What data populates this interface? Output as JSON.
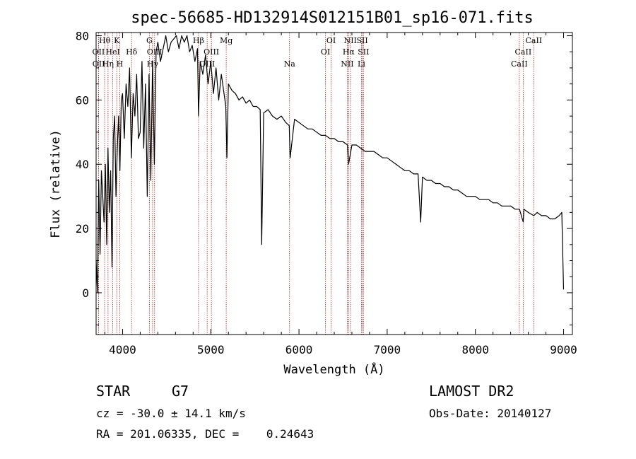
{
  "chart_data": {
    "type": "line",
    "title": "spec-56685-HD132914S012151B01_sp16-071.fits",
    "xlabel": "Wavelength (Å)",
    "ylabel": "Flux (relative)",
    "xlim": [
      3700,
      9100
    ],
    "ylim": [
      -13,
      81
    ],
    "xticks": [
      4000,
      5000,
      6000,
      7000,
      8000,
      9000
    ],
    "yticks": [
      0,
      20,
      40,
      60,
      80
    ],
    "series": [
      {
        "name": "spectrum",
        "x": [
          3700,
          3715,
          3730,
          3745,
          3760,
          3775,
          3790,
          3805,
          3820,
          3835,
          3850,
          3865,
          3880,
          3895,
          3910,
          3925,
          3940,
          3955,
          3970,
          3985,
          4000,
          4020,
          4040,
          4060,
          4080,
          4100,
          4120,
          4140,
          4160,
          4180,
          4200,
          4220,
          4240,
          4260,
          4280,
          4300,
          4320,
          4340,
          4360,
          4380,
          4400,
          4430,
          4460,
          4490,
          4520,
          4550,
          4580,
          4610,
          4640,
          4670,
          4700,
          4730,
          4760,
          4790,
          4820,
          4850,
          4861,
          4880,
          4910,
          4940,
          4970,
          5000,
          5030,
          5060,
          5090,
          5120,
          5150,
          5170,
          5183,
          5200,
          5240,
          5280,
          5320,
          5360,
          5400,
          5440,
          5480,
          5520,
          5560,
          5577,
          5600,
          5650,
          5700,
          5750,
          5800,
          5850,
          5890,
          5900,
          5950,
          6000,
          6050,
          6100,
          6150,
          6200,
          6250,
          6300,
          6350,
          6400,
          6450,
          6500,
          6550,
          6563,
          6600,
          6650,
          6700,
          6750,
          6800,
          6850,
          6900,
          6950,
          7000,
          7050,
          7100,
          7150,
          7200,
          7250,
          7300,
          7350,
          7380,
          7400,
          7450,
          7500,
          7550,
          7600,
          7650,
          7700,
          7750,
          7800,
          7850,
          7900,
          7950,
          8000,
          8050,
          8100,
          8150,
          8200,
          8250,
          8300,
          8350,
          8400,
          8450,
          8500,
          8542,
          8550,
          8600,
          8662,
          8700,
          8750,
          8800,
          8850,
          8900,
          8950,
          8980,
          9000
        ],
        "values": [
          10,
          0,
          35,
          12,
          38,
          30,
          22,
          40,
          15,
          45,
          25,
          38,
          8,
          48,
          55,
          30,
          45,
          55,
          38,
          60,
          62,
          48,
          65,
          58,
          70,
          42,
          62,
          55,
          68,
          48,
          50,
          72,
          45,
          65,
          30,
          68,
          35,
          72,
          40,
          75,
          78,
          72,
          76,
          80,
          75,
          78,
          79,
          80,
          76,
          80,
          78,
          80,
          75,
          77,
          72,
          76,
          55,
          72,
          68,
          74,
          65,
          72,
          62,
          70,
          60,
          68,
          62,
          58,
          42,
          65,
          63,
          62,
          60,
          61,
          59,
          60,
          58,
          58,
          57,
          15,
          56,
          57,
          55,
          54,
          55,
          53,
          52,
          42,
          54,
          53,
          52,
          51,
          51,
          50,
          49,
          49,
          48,
          48,
          47,
          47,
          46,
          40,
          46,
          46,
          45,
          44,
          44,
          44,
          43,
          42,
          42,
          41,
          40,
          39,
          38,
          38,
          37,
          37,
          22,
          36,
          35,
          35,
          34,
          34,
          33,
          33,
          32,
          32,
          31,
          30,
          30,
          30,
          29,
          29,
          29,
          28,
          28,
          27,
          27,
          27,
          26,
          26,
          22,
          26,
          25,
          24,
          25,
          24,
          24,
          23,
          23,
          24,
          25,
          1
        ]
      }
    ],
    "spectral_lines": [
      {
        "label": "Hθ",
        "wavelength": 3797,
        "row": 0
      },
      {
        "label": "OII",
        "wavelength": 3727,
        "row": 1
      },
      {
        "label": "OII",
        "wavelength": 3729,
        "row": 2
      },
      {
        "label": "Hη",
        "wavelength": 3835,
        "row": 2
      },
      {
        "label": "HeI",
        "wavelength": 3889,
        "row": 1
      },
      {
        "label": "K",
        "wavelength": 3934,
        "row": 0
      },
      {
        "label": "H",
        "wavelength": 3968,
        "row": 2
      },
      {
        "label": "Hδ",
        "wavelength": 4102,
        "row": 1
      },
      {
        "label": "G",
        "wavelength": 4304,
        "row": 0
      },
      {
        "label": "OIII",
        "wavelength": 4363,
        "row": 1
      },
      {
        "label": "Hγ",
        "wavelength": 4340,
        "row": 2
      },
      {
        "label": "Hβ",
        "wavelength": 4861,
        "row": 0
      },
      {
        "label": "OIII",
        "wavelength": 5007,
        "row": 1
      },
      {
        "label": "OIII",
        "wavelength": 4959,
        "row": 2
      },
      {
        "label": "Mg",
        "wavelength": 5175,
        "row": 0
      },
      {
        "label": "Na",
        "wavelength": 5893,
        "row": 2
      },
      {
        "label": "OI",
        "wavelength": 6364,
        "row": 0
      },
      {
        "label": "OI",
        "wavelength": 6300,
        "row": 1
      },
      {
        "label": "NII",
        "wavelength": 6583,
        "row": 0
      },
      {
        "label": "Hα",
        "wavelength": 6563,
        "row": 1
      },
      {
        "label": "NII",
        "wavelength": 6548,
        "row": 2
      },
      {
        "label": "SII",
        "wavelength": 6717,
        "row": 0
      },
      {
        "label": "SII",
        "wavelength": 6731,
        "row": 1
      },
      {
        "label": "Li",
        "wavelength": 6708,
        "row": 2
      },
      {
        "label": "CaII",
        "wavelength": 8662,
        "row": 0
      },
      {
        "label": "CaII",
        "wavelength": 8542,
        "row": 1
      },
      {
        "label": "CaII",
        "wavelength": 8498,
        "row": 2
      }
    ]
  },
  "info": {
    "object_type": "STAR",
    "subclass": "G7",
    "survey": "LAMOST DR2",
    "redshift_line": "cz = -30.0 ± 14.1 km/s",
    "obs_date_line": "Obs-Date: 20140127",
    "coords_line": "RA = 201.06335, DEC =    0.24643"
  },
  "colors": {
    "line": "#000000",
    "marker": "#b22222"
  }
}
